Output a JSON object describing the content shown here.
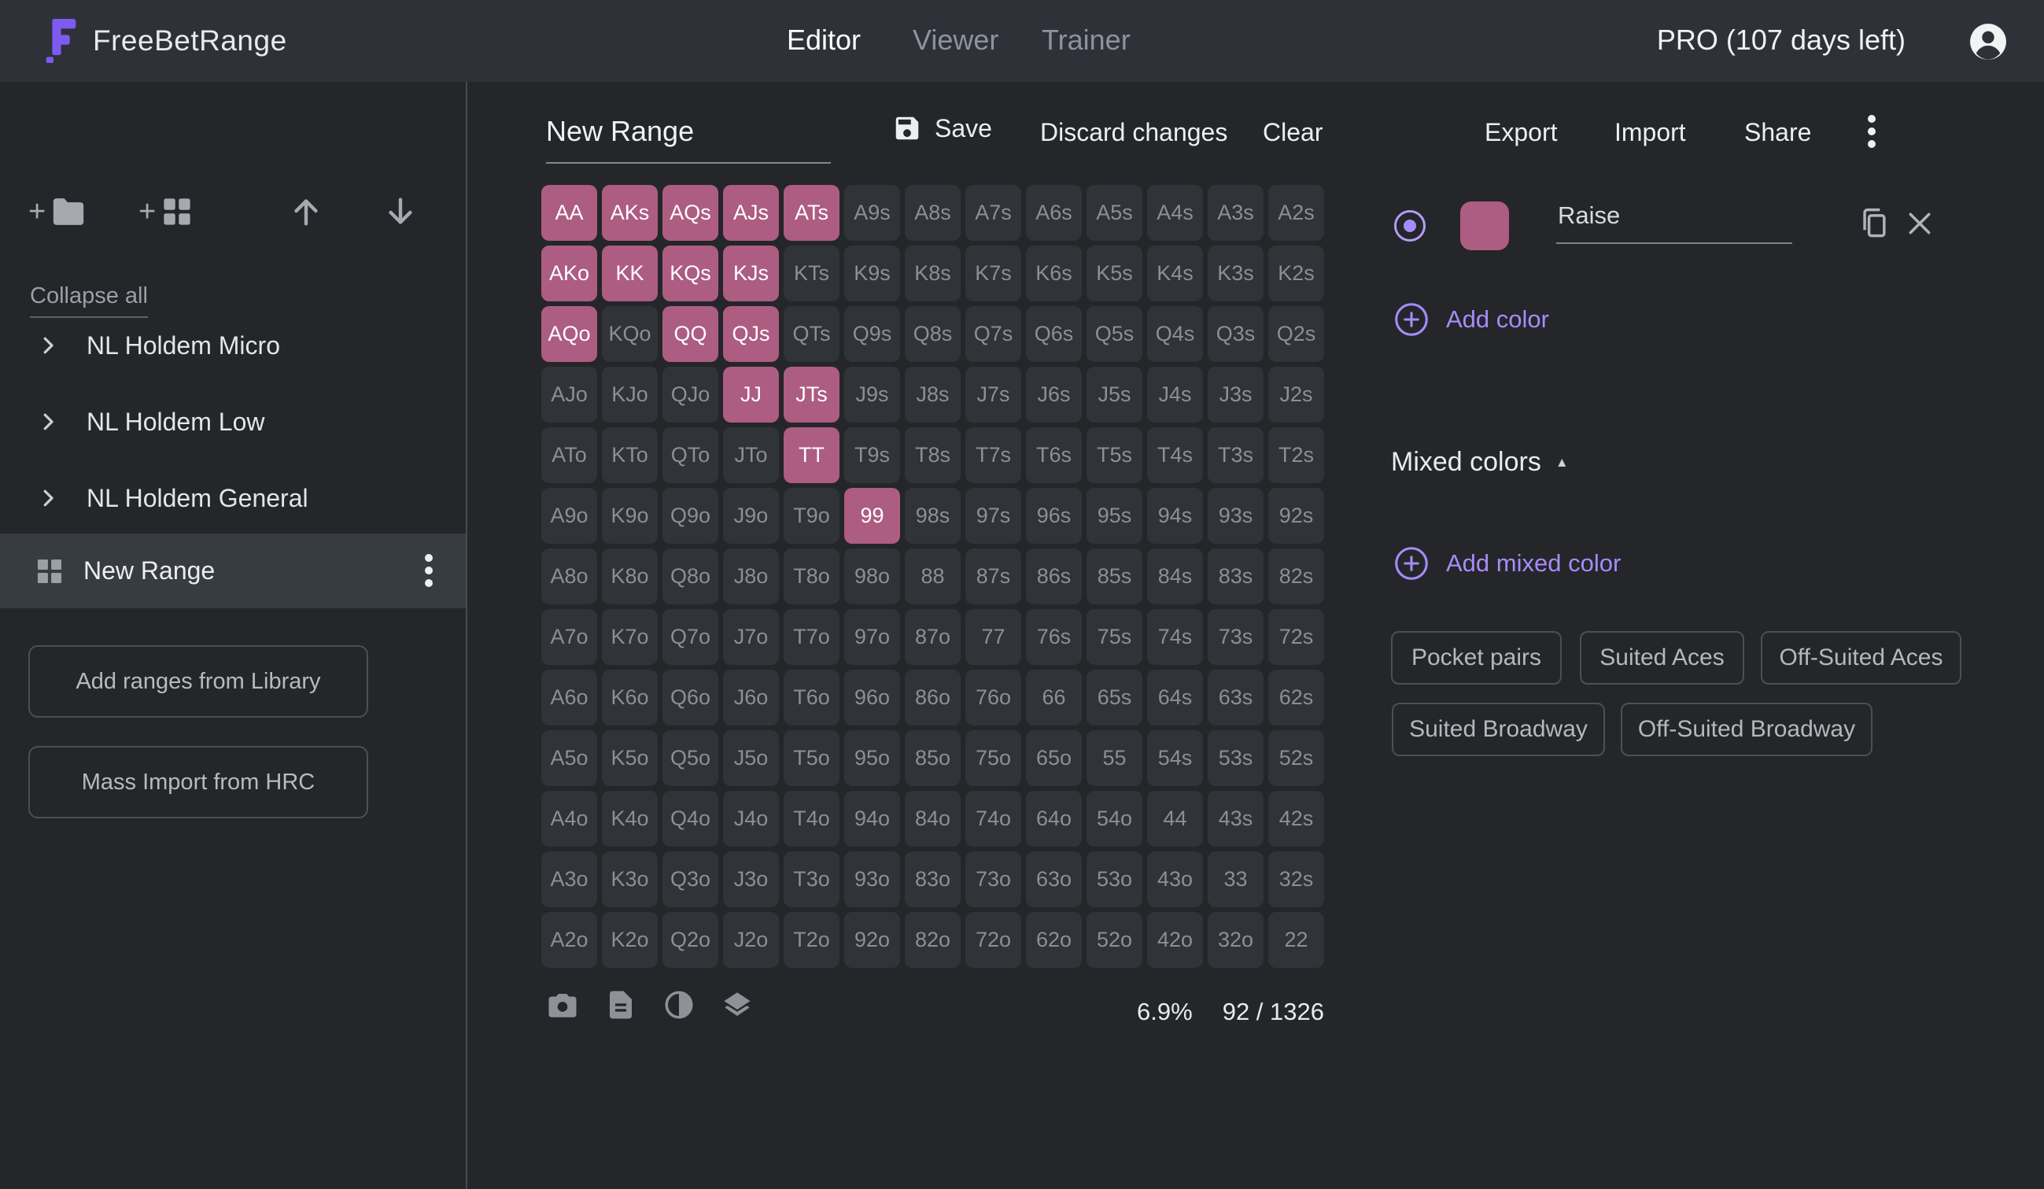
{
  "header": {
    "brand": "FreeBetRange",
    "tabs": [
      {
        "label": "Editor",
        "active": true
      },
      {
        "label": "Viewer",
        "active": false
      },
      {
        "label": "Trainer",
        "active": false
      }
    ],
    "plan": "PRO (107 days left)"
  },
  "sidebar": {
    "collapse_all": "Collapse all",
    "folders": [
      "NL Holdem Micro",
      "NL Holdem Low",
      "NL Holdem General"
    ],
    "selected_range": "New Range",
    "buttons": [
      "Add ranges from Library",
      "Mass Import from HRC"
    ]
  },
  "toolbar": {
    "range_name": "New Range",
    "save": "Save",
    "discard": "Discard changes",
    "clear": "Clear",
    "export": "Export",
    "import": "Import",
    "share": "Share"
  },
  "matrix": {
    "ranks": [
      "A",
      "K",
      "Q",
      "J",
      "T",
      "9",
      "8",
      "7",
      "6",
      "5",
      "4",
      "3",
      "2"
    ],
    "selected_hands": [
      "AA",
      "AKs",
      "AQs",
      "AJs",
      "ATs",
      "AKo",
      "KK",
      "KQs",
      "KJs",
      "AQo",
      "QQ",
      "QJs",
      "JJ",
      "JTs",
      "TT",
      "99"
    ],
    "selected_color": "#ad5c82",
    "cell_color": "#303338"
  },
  "footer": {
    "percent": "6.9%",
    "combos": "92 / 1326"
  },
  "color_panel": {
    "action_name": "Raise",
    "swatch_color": "#ad5c82",
    "add_color": "Add color",
    "mixed_colors": "Mixed colors",
    "mixed_caret": "▲",
    "add_mixed_color": "Add mixed color",
    "presets": [
      "Pocket pairs",
      "Suited Aces",
      "Off-Suited Aces",
      "Suited Broadway",
      "Off-Suited Broadway"
    ]
  },
  "colors": {
    "accent_purple": "#a78bfa",
    "logo_purple": "#7d5af2",
    "topbar_bg": "#2e3138",
    "body_bg": "#242629",
    "selected_row_bg": "#373b42"
  },
  "icons": {
    "logo": "stylized-F-blocks",
    "account": "person-in-circle",
    "new-folder": "plus+folder",
    "new-range": "plus+grid",
    "move-up": "arrow-up",
    "move-down": "arrow-down",
    "folder-chevron": "chevron-right",
    "range-grid": "grid-2x2",
    "row-menu": "kebab-vertical",
    "save": "floppy-disk",
    "screenshot": "camera",
    "notes": "document",
    "contrast": "half-filled-circle",
    "layers": "stacked-layers",
    "duplicate": "copy",
    "remove": "x-cross",
    "radio-selected": "dot-in-circle",
    "add": "plus-in-circle"
  }
}
